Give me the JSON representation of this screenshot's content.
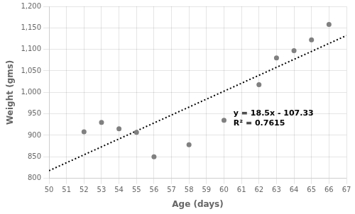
{
  "chart_data": {
    "type": "scatter",
    "xlabel": "Age (days)",
    "ylabel": "Weight (gms)",
    "series": [
      {
        "type": "scatter",
        "color": "#808080",
        "marker": "circle",
        "x": [
          52,
          53,
          54,
          55,
          56,
          58,
          60,
          62,
          63,
          64,
          65,
          66
        ],
        "values": [
          908,
          930,
          915,
          907,
          850,
          878,
          935,
          1018,
          1080,
          1097,
          1122,
          1158
        ]
      },
      {
        "type": "line",
        "color": "black",
        "line_style": "dotted",
        "x": [
          50,
          67
        ],
        "values": [
          817.67,
          1132.17
        ]
      }
    ],
    "annotations": [
      "y = 18.5x - 107.33",
      "R² = 0.7615"
    ],
    "xlim": [
      50,
      67
    ],
    "ylim": [
      800,
      1200
    ],
    "xticks": [
      50,
      51,
      52,
      53,
      54,
      55,
      56,
      57,
      58,
      59,
      60,
      61,
      62,
      63,
      64,
      65,
      66,
      67
    ],
    "yticks": [
      800,
      850,
      900,
      950,
      1000,
      1050,
      1100,
      1150,
      1200
    ],
    "grid": true
  }
}
